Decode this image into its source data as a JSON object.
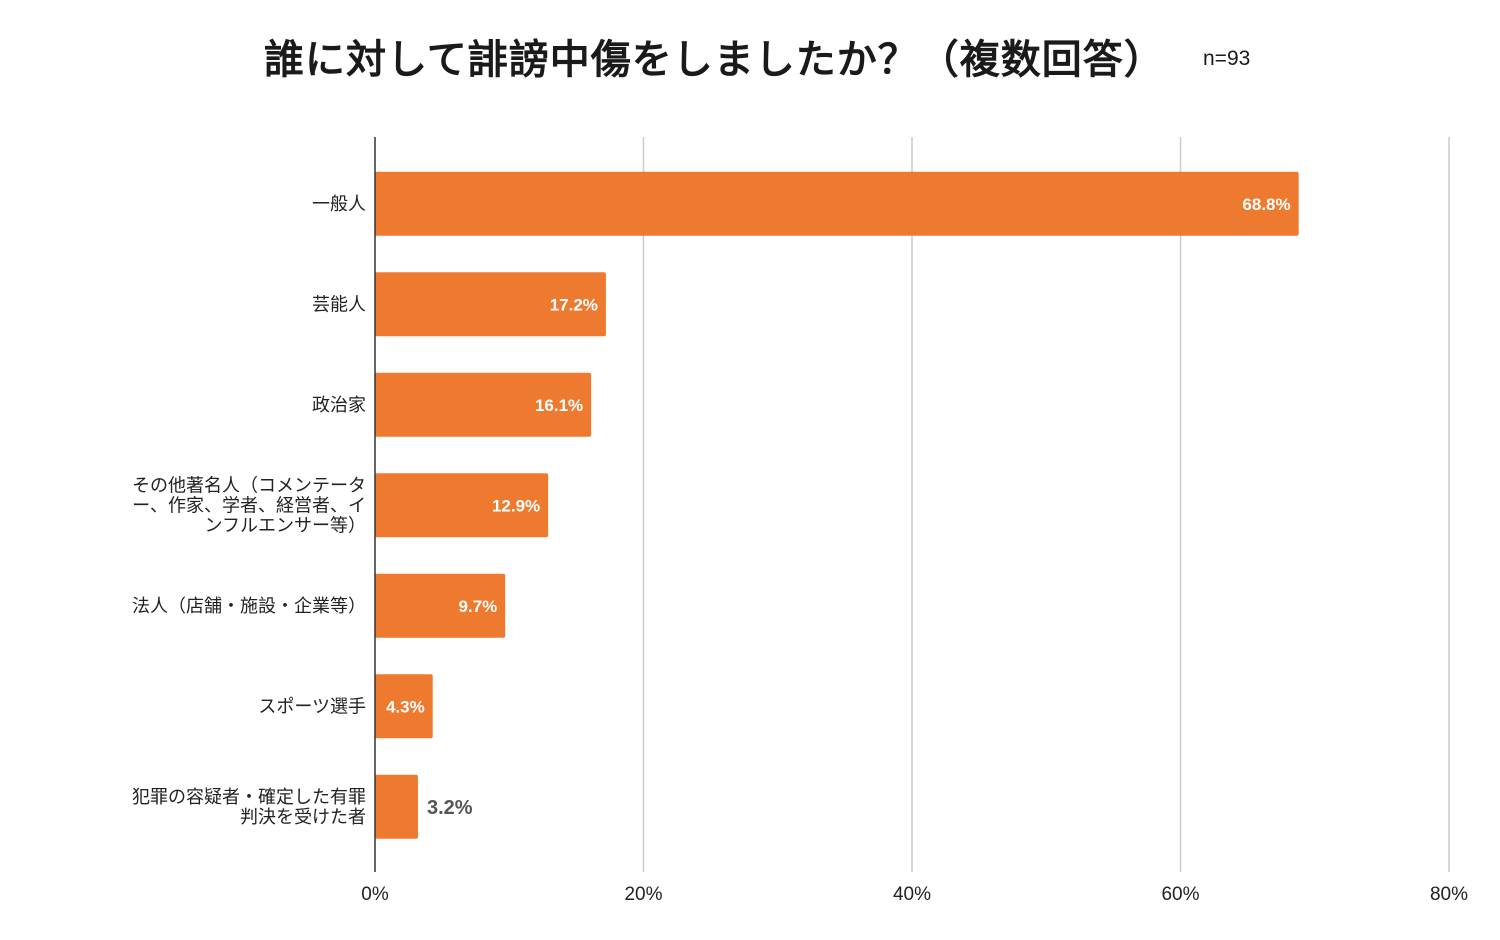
{
  "title": "誰に対して誹謗中傷をしましたか？（複数回答）",
  "subtitle": "n=93",
  "colors": {
    "bar": "#ED7A2F",
    "grid": "#CCCCCC",
    "axis": "#333333"
  },
  "chart_data": {
    "type": "bar",
    "orientation": "horizontal",
    "title": "誰に対して誹謗中傷をしましたか？（複数回答）",
    "subtitle": "n=93",
    "xlabel": "",
    "ylabel": "",
    "xlim": [
      0,
      80
    ],
    "xticks": [
      0,
      20,
      40,
      60,
      80
    ],
    "xtick_labels": [
      "0%",
      "20%",
      "40%",
      "60%",
      "80%"
    ],
    "grid": true,
    "categories": [
      [
        "一般人"
      ],
      [
        "芸能人"
      ],
      [
        "政治家"
      ],
      [
        "その他著名人（コメンテータ",
        "ー、作家、学者、経営者、イ",
        "ンフルエンサー等）"
      ],
      [
        "法人（店舗・施設・企業等）"
      ],
      [
        "スポーツ選手"
      ],
      [
        "犯罪の容疑者・確定した有罪",
        "判決を受けた者"
      ]
    ],
    "values": [
      68.8,
      17.2,
      16.1,
      12.9,
      9.7,
      4.3,
      3.2
    ],
    "value_labels": [
      "68.8%",
      "17.2%",
      "16.1%",
      "12.9%",
      "9.7%",
      "4.3%",
      "3.2%"
    ]
  }
}
